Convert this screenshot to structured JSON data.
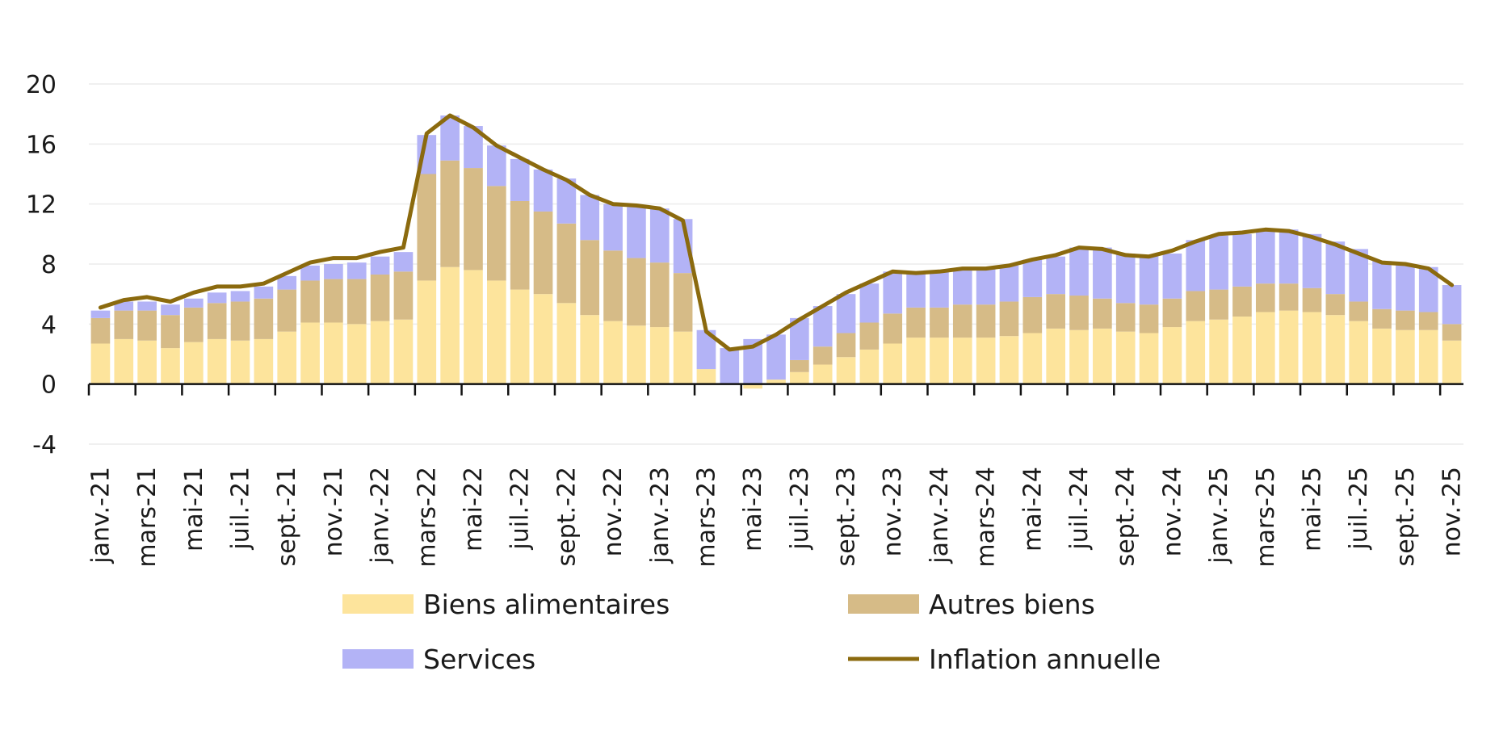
{
  "chart_data": {
    "type": "bar",
    "stacked": true,
    "title": "",
    "xlabel": "",
    "ylabel": "",
    "ylim": [
      -4,
      20
    ],
    "yticks": [
      -4,
      0,
      4,
      8,
      12,
      16,
      20
    ],
    "grid": true,
    "legend_position": "bottom",
    "categories": [
      "janv.-21",
      "févr.-21",
      "mars-21",
      "avr.-21",
      "mai-21",
      "juin-21",
      "juil.-21",
      "août-21",
      "sept.-21",
      "oct.-21",
      "nov.-21",
      "déc.-21",
      "janv.-22",
      "févr.-22",
      "mars-22",
      "avr.-22",
      "mai-22",
      "juin-22",
      "juil.-22",
      "août-22",
      "sept.-22",
      "oct.-22",
      "nov.-22",
      "déc.-22",
      "janv.-23",
      "févr.-23",
      "mars-23",
      "avr.-23",
      "mai-23",
      "juin-23",
      "juil.-23",
      "août-23",
      "sept.-23",
      "oct.-23",
      "nov.-23",
      "déc.-23",
      "janv.-24",
      "févr.-24",
      "mars-24",
      "avr.-24",
      "mai-24",
      "juin-24",
      "juil.-24",
      "août-24",
      "sept.-24",
      "oct.-24",
      "nov.-24",
      "déc.-24",
      "janv.-25",
      "févr.-25",
      "mars-25",
      "avr.-25",
      "mai-25",
      "juin-25",
      "juil.-25",
      "août-25",
      "sept.-25",
      "oct.-25",
      "nov.-25"
    ],
    "tick_labels": [
      "janv.-21",
      "mars-21",
      "mai-21",
      "juil.-21",
      "sept.-21",
      "nov.-21",
      "janv.-22",
      "mars-22",
      "mai-22",
      "juil.-22",
      "sept.-22",
      "nov.-22",
      "janv.-23",
      "mars-23",
      "mai-23",
      "juil.-23",
      "sept.-23",
      "nov.-23",
      "janv.-24",
      "mars-24",
      "mai-24",
      "juil.-24",
      "sept.-24",
      "nov.-24",
      "janv.-25",
      "mars-25",
      "mai-25",
      "juil.-25",
      "sept.-25",
      "nov.-25"
    ],
    "series": [
      {
        "name": "Biens alimentaires",
        "kind": "bar",
        "color": "#fde49c",
        "values": [
          2.7,
          3.0,
          2.9,
          2.4,
          2.8,
          3.0,
          2.9,
          3.0,
          3.5,
          4.1,
          4.1,
          4.0,
          4.2,
          4.3,
          6.9,
          7.8,
          7.6,
          6.9,
          6.3,
          6.0,
          5.4,
          4.6,
          4.2,
          3.9,
          3.8,
          3.5,
          1.0,
          0.0,
          -0.3,
          0.3,
          0.8,
          1.3,
          1.8,
          2.3,
          2.7,
          3.1,
          3.1,
          3.1,
          3.1,
          3.2,
          3.4,
          3.7,
          3.6,
          3.7,
          3.5,
          3.4,
          3.8,
          4.2,
          4.3,
          4.5,
          4.8,
          4.9,
          4.8,
          4.6,
          4.2,
          3.7,
          3.6,
          3.6,
          2.9
        ]
      },
      {
        "name": "Autres biens",
        "kind": "bar",
        "color": "#d6bb87",
        "values": [
          1.7,
          1.9,
          2.0,
          2.2,
          2.3,
          2.4,
          2.6,
          2.7,
          2.8,
          2.8,
          2.9,
          3.0,
          3.1,
          3.2,
          7.1,
          7.1,
          6.8,
          6.3,
          5.9,
          5.5,
          5.3,
          5.0,
          4.7,
          4.5,
          4.3,
          3.9,
          0.0,
          0.0,
          0.0,
          0.0,
          0.8,
          1.2,
          1.6,
          1.8,
          2.0,
          2.0,
          2.0,
          2.2,
          2.2,
          2.3,
          2.4,
          2.3,
          2.3,
          2.0,
          1.9,
          1.9,
          1.9,
          2.0,
          2.0,
          2.0,
          1.9,
          1.8,
          1.6,
          1.4,
          1.3,
          1.3,
          1.3,
          1.2,
          1.1
        ]
      },
      {
        "name": "Services",
        "kind": "bar",
        "color": "#b3b3f6",
        "values": [
          0.5,
          0.6,
          0.6,
          0.7,
          0.6,
          0.7,
          0.7,
          0.8,
          0.9,
          1.0,
          1.0,
          1.1,
          1.2,
          1.3,
          2.6,
          3.0,
          2.8,
          2.7,
          2.8,
          2.8,
          3.0,
          3.0,
          3.1,
          3.4,
          3.6,
          3.6,
          2.6,
          2.4,
          3.0,
          3.0,
          2.8,
          2.7,
          2.6,
          2.6,
          2.8,
          2.3,
          2.4,
          2.4,
          2.4,
          2.4,
          2.5,
          2.5,
          3.2,
          3.4,
          3.3,
          3.3,
          3.0,
          3.4,
          3.6,
          3.5,
          3.6,
          3.6,
          3.6,
          3.5,
          3.5,
          3.2,
          3.1,
          3.0,
          2.6
        ]
      },
      {
        "name": "Inflation annuelle",
        "kind": "line",
        "color": "#8b6a0e",
        "values": [
          5.1,
          5.6,
          5.8,
          5.5,
          6.1,
          6.5,
          6.5,
          6.7,
          7.4,
          8.1,
          8.4,
          8.4,
          8.8,
          9.1,
          16.7,
          17.9,
          17.1,
          15.9,
          15.1,
          14.3,
          13.6,
          12.6,
          12.0,
          11.9,
          11.7,
          10.9,
          3.5,
          2.3,
          2.5,
          3.3,
          4.3,
          5.2,
          6.1,
          6.8,
          7.5,
          7.4,
          7.5,
          7.7,
          7.7,
          7.9,
          8.3,
          8.6,
          9.1,
          9.0,
          8.6,
          8.5,
          8.9,
          9.5,
          10.0,
          10.1,
          10.3,
          10.2,
          9.8,
          9.3,
          8.7,
          8.1,
          8.0,
          7.7,
          6.6
        ]
      }
    ]
  }
}
